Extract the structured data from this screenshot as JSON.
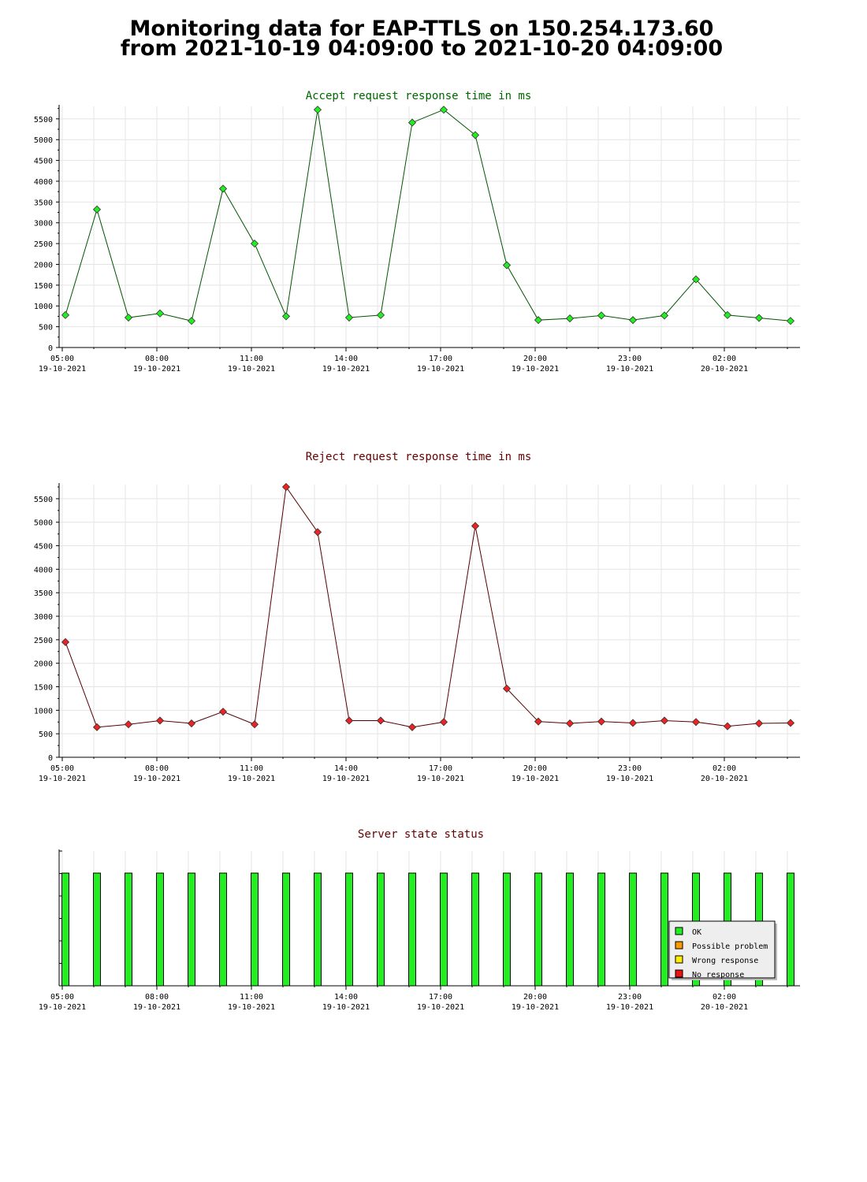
{
  "page": {
    "title_line1": "Monitoring data for EAP-TTLS on 150.254.173.60",
    "title_line2": "from 2021-10-19 04:09:00 to 2021-10-20 04:09:00"
  },
  "chart_data": [
    {
      "id": "accept",
      "type": "line",
      "title": "Accept request response time in ms",
      "title_color": "#006600",
      "line_color": "#005500",
      "marker_color": "#22ee22",
      "x_ticks": [
        {
          "time": "05:00",
          "date": "19-10-2021"
        },
        {
          "time": "08:00",
          "date": "19-10-2021"
        },
        {
          "time": "11:00",
          "date": "19-10-2021"
        },
        {
          "time": "14:00",
          "date": "19-10-2021"
        },
        {
          "time": "17:00",
          "date": "19-10-2021"
        },
        {
          "time": "20:00",
          "date": "19-10-2021"
        },
        {
          "time": "23:00",
          "date": "19-10-2021"
        },
        {
          "time": "02:00",
          "date": "20-10-2021"
        }
      ],
      "x_range_hours": [
        4.9,
        28.4
      ],
      "y_ticks": [
        0,
        500,
        1000,
        1500,
        2000,
        2500,
        3000,
        3500,
        4000,
        4500,
        5000,
        5500
      ],
      "ylim": [
        0,
        5800
      ],
      "grid": true,
      "x": [
        5.1,
        6.1,
        7.1,
        8.1,
        9.1,
        10.1,
        11.1,
        12.1,
        13.1,
        14.1,
        15.1,
        16.1,
        17.1,
        18.1,
        19.1,
        20.1,
        21.1,
        22.1,
        23.1,
        24.1,
        25.1,
        26.1,
        27.1,
        28.1
      ],
      "values": [
        780,
        3320,
        720,
        820,
        640,
        3820,
        2500,
        750,
        5720,
        720,
        780,
        5410,
        5720,
        5110,
        1980,
        660,
        700,
        770,
        660,
        770,
        1640,
        780,
        710,
        640
      ]
    },
    {
      "id": "reject",
      "type": "line",
      "title": "Reject request response time in ms",
      "title_color": "#660000",
      "line_color": "#550000",
      "marker_color": "#ee2222",
      "x_ticks": [
        {
          "time": "05:00",
          "date": "19-10-2021"
        },
        {
          "time": "08:00",
          "date": "19-10-2021"
        },
        {
          "time": "11:00",
          "date": "19-10-2021"
        },
        {
          "time": "14:00",
          "date": "19-10-2021"
        },
        {
          "time": "17:00",
          "date": "19-10-2021"
        },
        {
          "time": "20:00",
          "date": "19-10-2021"
        },
        {
          "time": "23:00",
          "date": "19-10-2021"
        },
        {
          "time": "02:00",
          "date": "20-10-2021"
        }
      ],
      "x_range_hours": [
        4.9,
        28.4
      ],
      "y_ticks": [
        0,
        500,
        1000,
        1500,
        2000,
        2500,
        3000,
        3500,
        4000,
        4500,
        5000,
        5500
      ],
      "ylim": [
        0,
        5800
      ],
      "grid": true,
      "x": [
        5.1,
        6.1,
        7.1,
        8.1,
        9.1,
        10.1,
        11.1,
        12.1,
        13.1,
        14.1,
        15.1,
        16.1,
        17.1,
        18.1,
        19.1,
        20.1,
        21.1,
        22.1,
        23.1,
        24.1,
        25.1,
        26.1,
        27.1,
        28.1
      ],
      "values": [
        2450,
        640,
        700,
        780,
        720,
        970,
        700,
        5750,
        4790,
        780,
        780,
        640,
        750,
        4920,
        1460,
        760,
        720,
        760,
        730,
        780,
        750,
        660,
        720,
        730
      ]
    },
    {
      "id": "state",
      "type": "bar",
      "title": "Server state status",
      "title_color": "#660000",
      "x_ticks": [
        {
          "time": "05:00",
          "date": "19-10-2021"
        },
        {
          "time": "08:00",
          "date": "19-10-2021"
        },
        {
          "time": "11:00",
          "date": "19-10-2021"
        },
        {
          "time": "14:00",
          "date": "19-10-2021"
        },
        {
          "time": "17:00",
          "date": "19-10-2021"
        },
        {
          "time": "20:00",
          "date": "19-10-2021"
        },
        {
          "time": "23:00",
          "date": "19-10-2021"
        },
        {
          "time": "02:00",
          "date": "20-10-2021"
        }
      ],
      "x_range_hours": [
        4.9,
        28.4
      ],
      "x": [
        5.1,
        6.1,
        7.1,
        8.1,
        9.1,
        10.1,
        11.1,
        12.1,
        13.1,
        14.1,
        15.1,
        16.1,
        17.1,
        18.1,
        19.1,
        20.1,
        21.1,
        22.1,
        23.1,
        24.1,
        25.1,
        26.1,
        27.1,
        28.1
      ],
      "states": [
        "OK",
        "OK",
        "OK",
        "OK",
        "OK",
        "OK",
        "OK",
        "OK",
        "OK",
        "OK",
        "OK",
        "OK",
        "OK",
        "OK",
        "OK",
        "OK",
        "OK",
        "OK",
        "OK",
        "OK",
        "OK",
        "OK",
        "OK",
        "OK"
      ],
      "legend_placement": "bottom-right",
      "legend": [
        {
          "state": "OK",
          "label": "OK",
          "color": "#22ee22"
        },
        {
          "state": "Possible problem",
          "label": "Possible problem",
          "color": "#ff9900"
        },
        {
          "state": "Wrong response",
          "label": "Wrong response",
          "color": "#ffee00"
        },
        {
          "state": "No response",
          "label": "No response",
          "color": "#ee1111"
        }
      ]
    }
  ]
}
